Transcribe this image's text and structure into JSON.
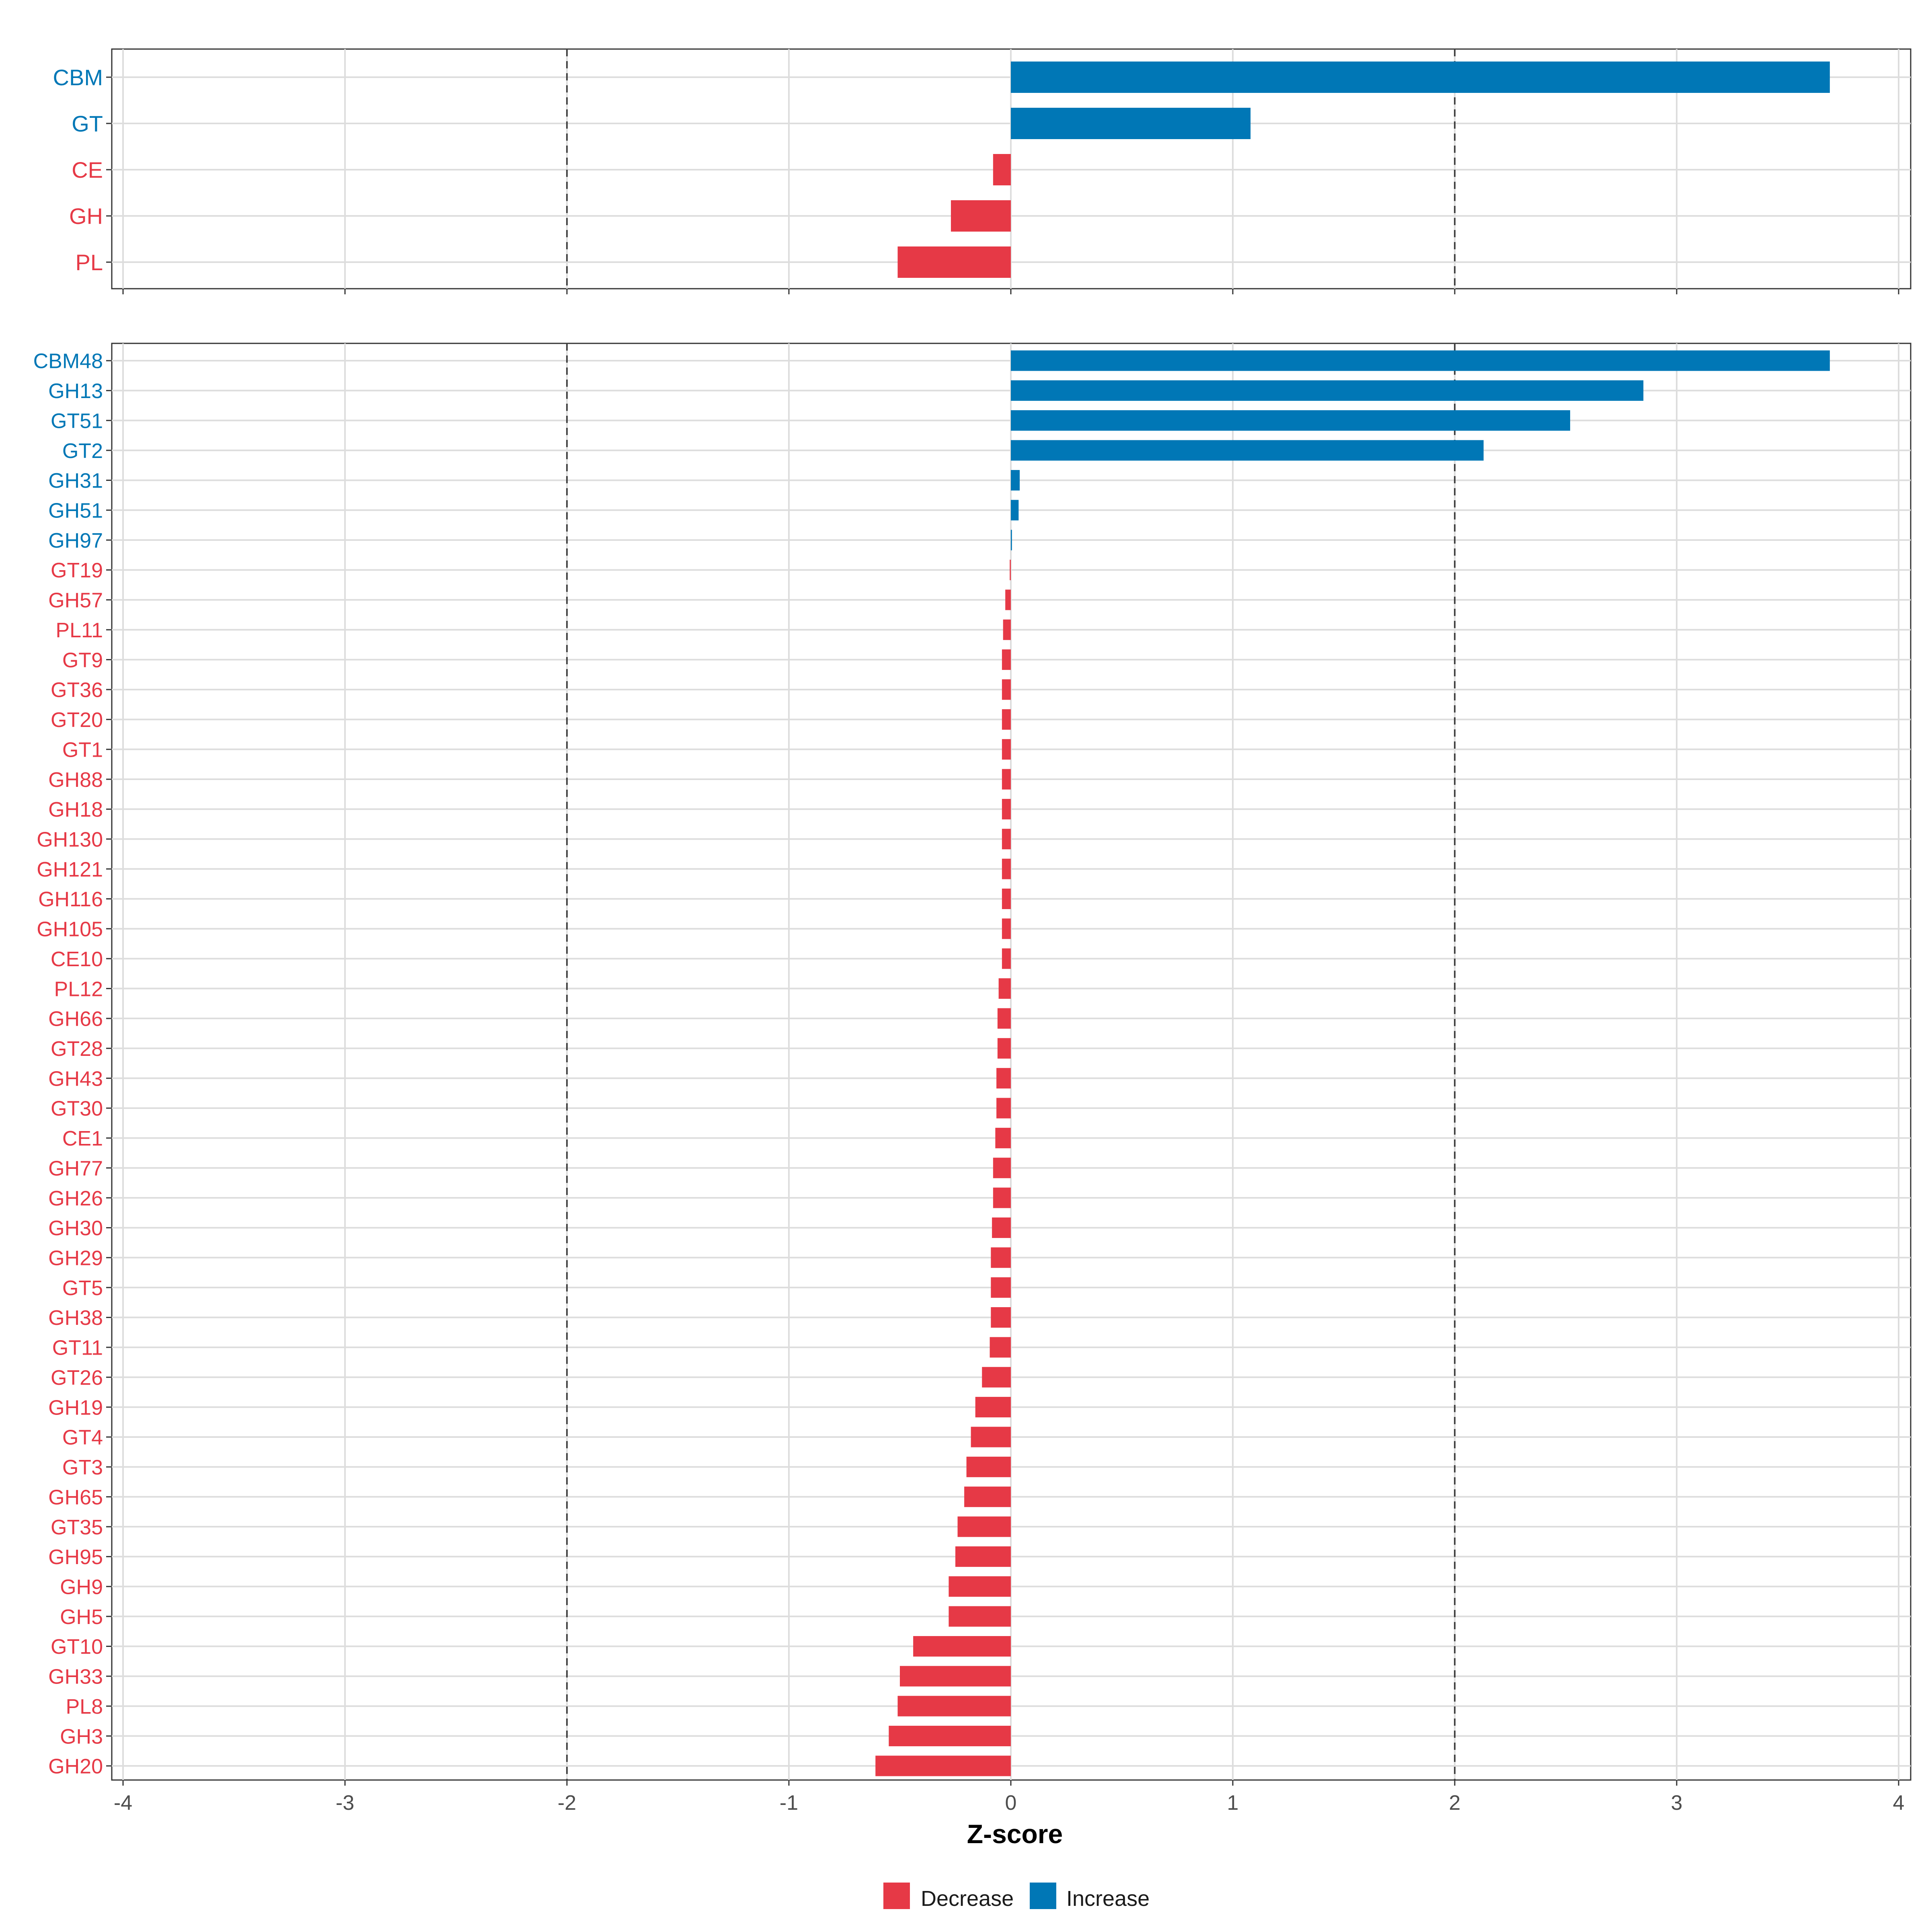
{
  "colors": {
    "decrease": "#E63946",
    "increase": "#0077B6"
  },
  "legend": {
    "decrease_label": "Decrease",
    "increase_label": "Increase"
  },
  "chart_data": [
    {
      "type": "bar",
      "orientation": "horizontal",
      "panel": "class",
      "xlim": [
        -4,
        4
      ],
      "xticks": [
        -4,
        -3,
        -2,
        -1,
        0,
        1,
        2,
        3,
        4
      ],
      "reference_lines": [
        -2,
        2
      ],
      "xlabel": "Z-score",
      "categories": [
        "CBM",
        "GT",
        "CE",
        "GH",
        "PL"
      ],
      "values": [
        3.69,
        1.08,
        -0.08,
        -0.27,
        -0.51
      ]
    },
    {
      "type": "bar",
      "orientation": "horizontal",
      "panel": "family",
      "xlim": [
        -4,
        4
      ],
      "xticks": [
        -4,
        -3,
        -2,
        -1,
        0,
        1,
        2,
        3,
        4
      ],
      "reference_lines": [
        -2,
        2
      ],
      "xlabel": "Z-score",
      "categories": [
        "CBM48",
        "GH13",
        "GT51",
        "GT2",
        "GH31",
        "GH51",
        "GH97",
        "GT19",
        "GH57",
        "PL11",
        "GT9",
        "GT36",
        "GT20",
        "GT1",
        "GH88",
        "GH18",
        "GH130",
        "GH121",
        "GH116",
        "GH105",
        "CE10",
        "PL12",
        "GH66",
        "GT28",
        "GH43",
        "GT30",
        "CE1",
        "GH77",
        "GH26",
        "GH30",
        "GH29",
        "GT5",
        "GH38",
        "GT11",
        "GT26",
        "GH19",
        "GT4",
        "GT3",
        "GH65",
        "GT35",
        "GH95",
        "GH9",
        "GH5",
        "GT10",
        "GH33",
        "PL8",
        "GH3",
        "GH20"
      ],
      "values": [
        3.69,
        2.85,
        2.52,
        2.13,
        0.04,
        0.035,
        0.005,
        -0.005,
        -0.025,
        -0.035,
        -0.04,
        -0.04,
        -0.04,
        -0.04,
        -0.04,
        -0.04,
        -0.04,
        -0.04,
        -0.04,
        -0.04,
        -0.04,
        -0.055,
        -0.06,
        -0.06,
        -0.065,
        -0.065,
        -0.07,
        -0.08,
        -0.08,
        -0.085,
        -0.09,
        -0.09,
        -0.09,
        -0.095,
        -0.13,
        -0.16,
        -0.18,
        -0.2,
        -0.21,
        -0.24,
        -0.25,
        -0.28,
        -0.28,
        -0.44,
        -0.5,
        -0.51,
        -0.55,
        -0.61
      ]
    }
  ]
}
